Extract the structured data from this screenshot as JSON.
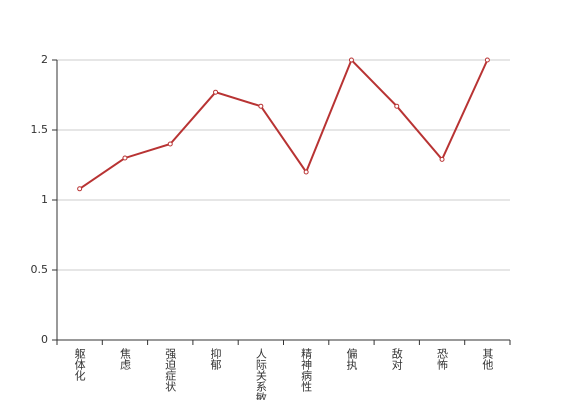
{
  "chart_data": {
    "type": "line",
    "categories": [
      "躯体化",
      "焦虑",
      "强迫症状",
      "抑郁",
      "人际关系敏感",
      "精神病性",
      "偏执",
      "敌对",
      "恐怖",
      "其他"
    ],
    "series": [
      {
        "color": "#b83333",
        "values": [
          1.08,
          1.3,
          1.4,
          1.77,
          1.67,
          1.2,
          2,
          1.67,
          1.29,
          2
        ]
      }
    ],
    "ylim": [
      0,
      2
    ],
    "yticks": [
      0,
      0.5,
      1,
      1.5,
      2
    ],
    "grid": true
  }
}
